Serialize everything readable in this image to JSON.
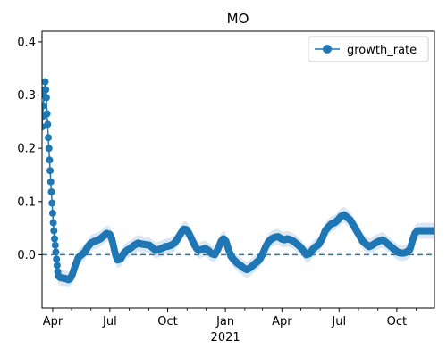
{
  "chart_data": {
    "type": "line",
    "title": "MO",
    "xlabel": "",
    "ylabel": "",
    "x_axis": {
      "kind": "date",
      "range": [
        "2020-03-15",
        "2021-11-30"
      ],
      "ticks": [
        {
          "date": "2020-04-01",
          "label": "Apr"
        },
        {
          "date": "2020-07-01",
          "label": "Jul"
        },
        {
          "date": "2020-10-01",
          "label": "Oct"
        },
        {
          "date": "2021-01-01",
          "label": "Jan"
        },
        {
          "date": "2021-04-01",
          "label": "Apr"
        },
        {
          "date": "2021-07-01",
          "label": "Jul"
        },
        {
          "date": "2021-10-01",
          "label": "Oct"
        }
      ],
      "year_label": "2021"
    },
    "y_axis": {
      "ylim": [
        -0.1,
        0.42
      ],
      "ticks": [
        {
          "value": 0.0,
          "label": "0.0"
        },
        {
          "value": 0.1,
          "label": "0.1"
        },
        {
          "value": 0.2,
          "label": "0.2"
        },
        {
          "value": 0.3,
          "label": "0.3"
        },
        {
          "value": 0.4,
          "label": "0.4"
        }
      ]
    },
    "legend": {
      "position": "top-right",
      "entries": [
        "growth_rate"
      ]
    },
    "reference_line": {
      "y": 0.0,
      "style": "dashed"
    },
    "colors": {
      "line": "#1f77b4",
      "band": "#dbe8f4",
      "reference": "#1f77b4"
    },
    "band_halfwidth": 0.015,
    "series": [
      {
        "name": "growth_rate",
        "points": [
          [
            "2020-03-15",
            0.24
          ],
          [
            "2020-03-16",
            0.26
          ],
          [
            "2020-03-17",
            0.28
          ],
          [
            "2020-03-18",
            0.3
          ],
          [
            "2020-03-19",
            0.31
          ],
          [
            "2020-03-20",
            0.325
          ],
          [
            "2020-03-21",
            0.31
          ],
          [
            "2020-03-22",
            0.295
          ],
          [
            "2020-03-23",
            0.265
          ],
          [
            "2020-03-24",
            0.245
          ],
          [
            "2020-03-25",
            0.22
          ],
          [
            "2020-03-26",
            0.2
          ],
          [
            "2020-03-27",
            0.178
          ],
          [
            "2020-03-28",
            0.158
          ],
          [
            "2020-03-29",
            0.137
          ],
          [
            "2020-03-30",
            0.118
          ],
          [
            "2020-03-31",
            0.097
          ],
          [
            "2020-04-01",
            0.078
          ],
          [
            "2020-04-02",
            0.06
          ],
          [
            "2020-04-03",
            0.045
          ],
          [
            "2020-04-04",
            0.03
          ],
          [
            "2020-04-05",
            0.018
          ],
          [
            "2020-04-06",
            0.005
          ],
          [
            "2020-04-07",
            -0.008
          ],
          [
            "2020-04-08",
            -0.02
          ],
          [
            "2020-04-09",
            -0.032
          ],
          [
            "2020-04-10",
            -0.04
          ],
          [
            "2020-04-13",
            -0.043
          ],
          [
            "2020-04-18",
            -0.044
          ],
          [
            "2020-04-22",
            -0.045
          ],
          [
            "2020-04-26",
            -0.047
          ],
          [
            "2020-04-29",
            -0.045
          ],
          [
            "2020-05-03",
            -0.035
          ],
          [
            "2020-05-07",
            -0.02
          ],
          [
            "2020-05-12",
            -0.005
          ],
          [
            "2020-05-17",
            0.0
          ],
          [
            "2020-05-22",
            0.005
          ],
          [
            "2020-05-27",
            0.015
          ],
          [
            "2020-06-01",
            0.022
          ],
          [
            "2020-06-06",
            0.025
          ],
          [
            "2020-06-11",
            0.027
          ],
          [
            "2020-06-16",
            0.03
          ],
          [
            "2020-06-21",
            0.035
          ],
          [
            "2020-06-26",
            0.04
          ],
          [
            "2020-07-01",
            0.038
          ],
          [
            "2020-07-04",
            0.03
          ],
          [
            "2020-07-07",
            0.015
          ],
          [
            "2020-07-10",
            0.0
          ],
          [
            "2020-07-13",
            -0.01
          ],
          [
            "2020-07-18",
            -0.008
          ],
          [
            "2020-07-23",
            0.002
          ],
          [
            "2020-07-28",
            0.008
          ],
          [
            "2020-08-03",
            0.012
          ],
          [
            "2020-08-09",
            0.018
          ],
          [
            "2020-08-15",
            0.022
          ],
          [
            "2020-08-21",
            0.02
          ],
          [
            "2020-08-27",
            0.019
          ],
          [
            "2020-09-02",
            0.018
          ],
          [
            "2020-09-07",
            0.013
          ],
          [
            "2020-09-12",
            0.008
          ],
          [
            "2020-09-17",
            0.01
          ],
          [
            "2020-09-22",
            0.012
          ],
          [
            "2020-09-27",
            0.015
          ],
          [
            "2020-10-02",
            0.016
          ],
          [
            "2020-10-07",
            0.018
          ],
          [
            "2020-10-12",
            0.022
          ],
          [
            "2020-10-17",
            0.03
          ],
          [
            "2020-10-22",
            0.04
          ],
          [
            "2020-10-27",
            0.048
          ],
          [
            "2020-10-31",
            0.047
          ],
          [
            "2020-11-04",
            0.04
          ],
          [
            "2020-11-08",
            0.03
          ],
          [
            "2020-11-12",
            0.02
          ],
          [
            "2020-11-16",
            0.012
          ],
          [
            "2020-11-20",
            0.008
          ],
          [
            "2020-11-25",
            0.01
          ],
          [
            "2020-11-30",
            0.012
          ],
          [
            "2020-12-05",
            0.008
          ],
          [
            "2020-12-10",
            0.002
          ],
          [
            "2020-12-15",
            0.0
          ],
          [
            "2020-12-20",
            0.01
          ],
          [
            "2020-12-25",
            0.025
          ],
          [
            "2020-12-29",
            0.03
          ],
          [
            "2021-01-02",
            0.025
          ],
          [
            "2021-01-06",
            0.01
          ],
          [
            "2021-01-10",
            -0.003
          ],
          [
            "2021-01-15",
            -0.01
          ],
          [
            "2021-01-20",
            -0.016
          ],
          [
            "2021-01-25",
            -0.02
          ],
          [
            "2021-01-30",
            -0.025
          ],
          [
            "2021-02-04",
            -0.028
          ],
          [
            "2021-02-09",
            -0.025
          ],
          [
            "2021-02-14",
            -0.02
          ],
          [
            "2021-02-19",
            -0.015
          ],
          [
            "2021-02-24",
            -0.01
          ],
          [
            "2021-03-01",
            0.0
          ],
          [
            "2021-03-06",
            0.015
          ],
          [
            "2021-03-11",
            0.025
          ],
          [
            "2021-03-16",
            0.03
          ],
          [
            "2021-03-21",
            0.033
          ],
          [
            "2021-03-26",
            0.034
          ],
          [
            "2021-03-31",
            0.03
          ],
          [
            "2021-04-05",
            0.028
          ],
          [
            "2021-04-10",
            0.03
          ],
          [
            "2021-04-15",
            0.028
          ],
          [
            "2021-04-20",
            0.025
          ],
          [
            "2021-04-25",
            0.02
          ],
          [
            "2021-04-30",
            0.015
          ],
          [
            "2021-05-05",
            0.008
          ],
          [
            "2021-05-10",
            0.0
          ],
          [
            "2021-05-15",
            0.002
          ],
          [
            "2021-05-20",
            0.01
          ],
          [
            "2021-05-25",
            0.015
          ],
          [
            "2021-05-30",
            0.02
          ],
          [
            "2021-06-04",
            0.03
          ],
          [
            "2021-06-09",
            0.045
          ],
          [
            "2021-06-14",
            0.052
          ],
          [
            "2021-06-19",
            0.058
          ],
          [
            "2021-06-24",
            0.06
          ],
          [
            "2021-06-29",
            0.065
          ],
          [
            "2021-07-04",
            0.072
          ],
          [
            "2021-07-09",
            0.075
          ],
          [
            "2021-07-14",
            0.07
          ],
          [
            "2021-07-19",
            0.065
          ],
          [
            "2021-07-24",
            0.055
          ],
          [
            "2021-07-29",
            0.045
          ],
          [
            "2021-08-03",
            0.035
          ],
          [
            "2021-08-08",
            0.025
          ],
          [
            "2021-08-13",
            0.02
          ],
          [
            "2021-08-18",
            0.015
          ],
          [
            "2021-08-23",
            0.018
          ],
          [
            "2021-08-28",
            0.022
          ],
          [
            "2021-09-02",
            0.025
          ],
          [
            "2021-09-07",
            0.028
          ],
          [
            "2021-09-12",
            0.025
          ],
          [
            "2021-09-17",
            0.02
          ],
          [
            "2021-09-22",
            0.015
          ],
          [
            "2021-09-27",
            0.01
          ],
          [
            "2021-10-02",
            0.005
          ],
          [
            "2021-10-07",
            0.003
          ],
          [
            "2021-10-12",
            0.003
          ],
          [
            "2021-10-17",
            0.005
          ],
          [
            "2021-10-22",
            0.01
          ],
          [
            "2021-10-27",
            0.03
          ],
          [
            "2021-10-30",
            0.04
          ],
          [
            "2021-11-03",
            0.045
          ],
          [
            "2021-11-10",
            0.045
          ],
          [
            "2021-11-17",
            0.045
          ],
          [
            "2021-11-24",
            0.045
          ],
          [
            "2021-11-30",
            0.045
          ]
        ]
      }
    ]
  }
}
